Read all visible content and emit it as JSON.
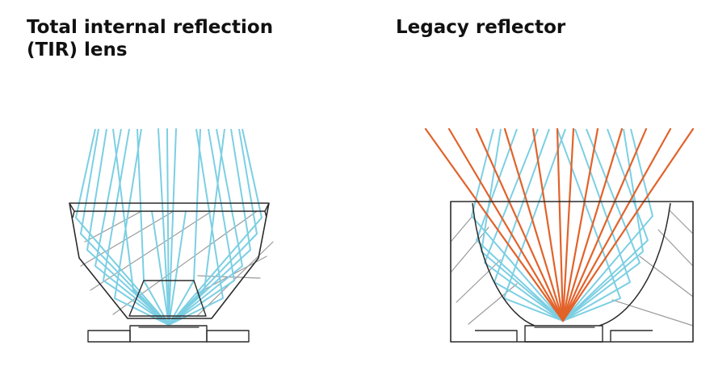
{
  "panels": [
    {
      "title_line1": "Total internal reflection",
      "title_line2": "(TIR) lens"
    },
    {
      "title_line1": "Legacy reflector"
    }
  ],
  "colors": {
    "outline": "#2a2a2a",
    "light_ray": "#7ccfe3",
    "reflected_ray": "#e2622a",
    "hatch": "#9a9a9a",
    "background": "#ffffff"
  }
}
